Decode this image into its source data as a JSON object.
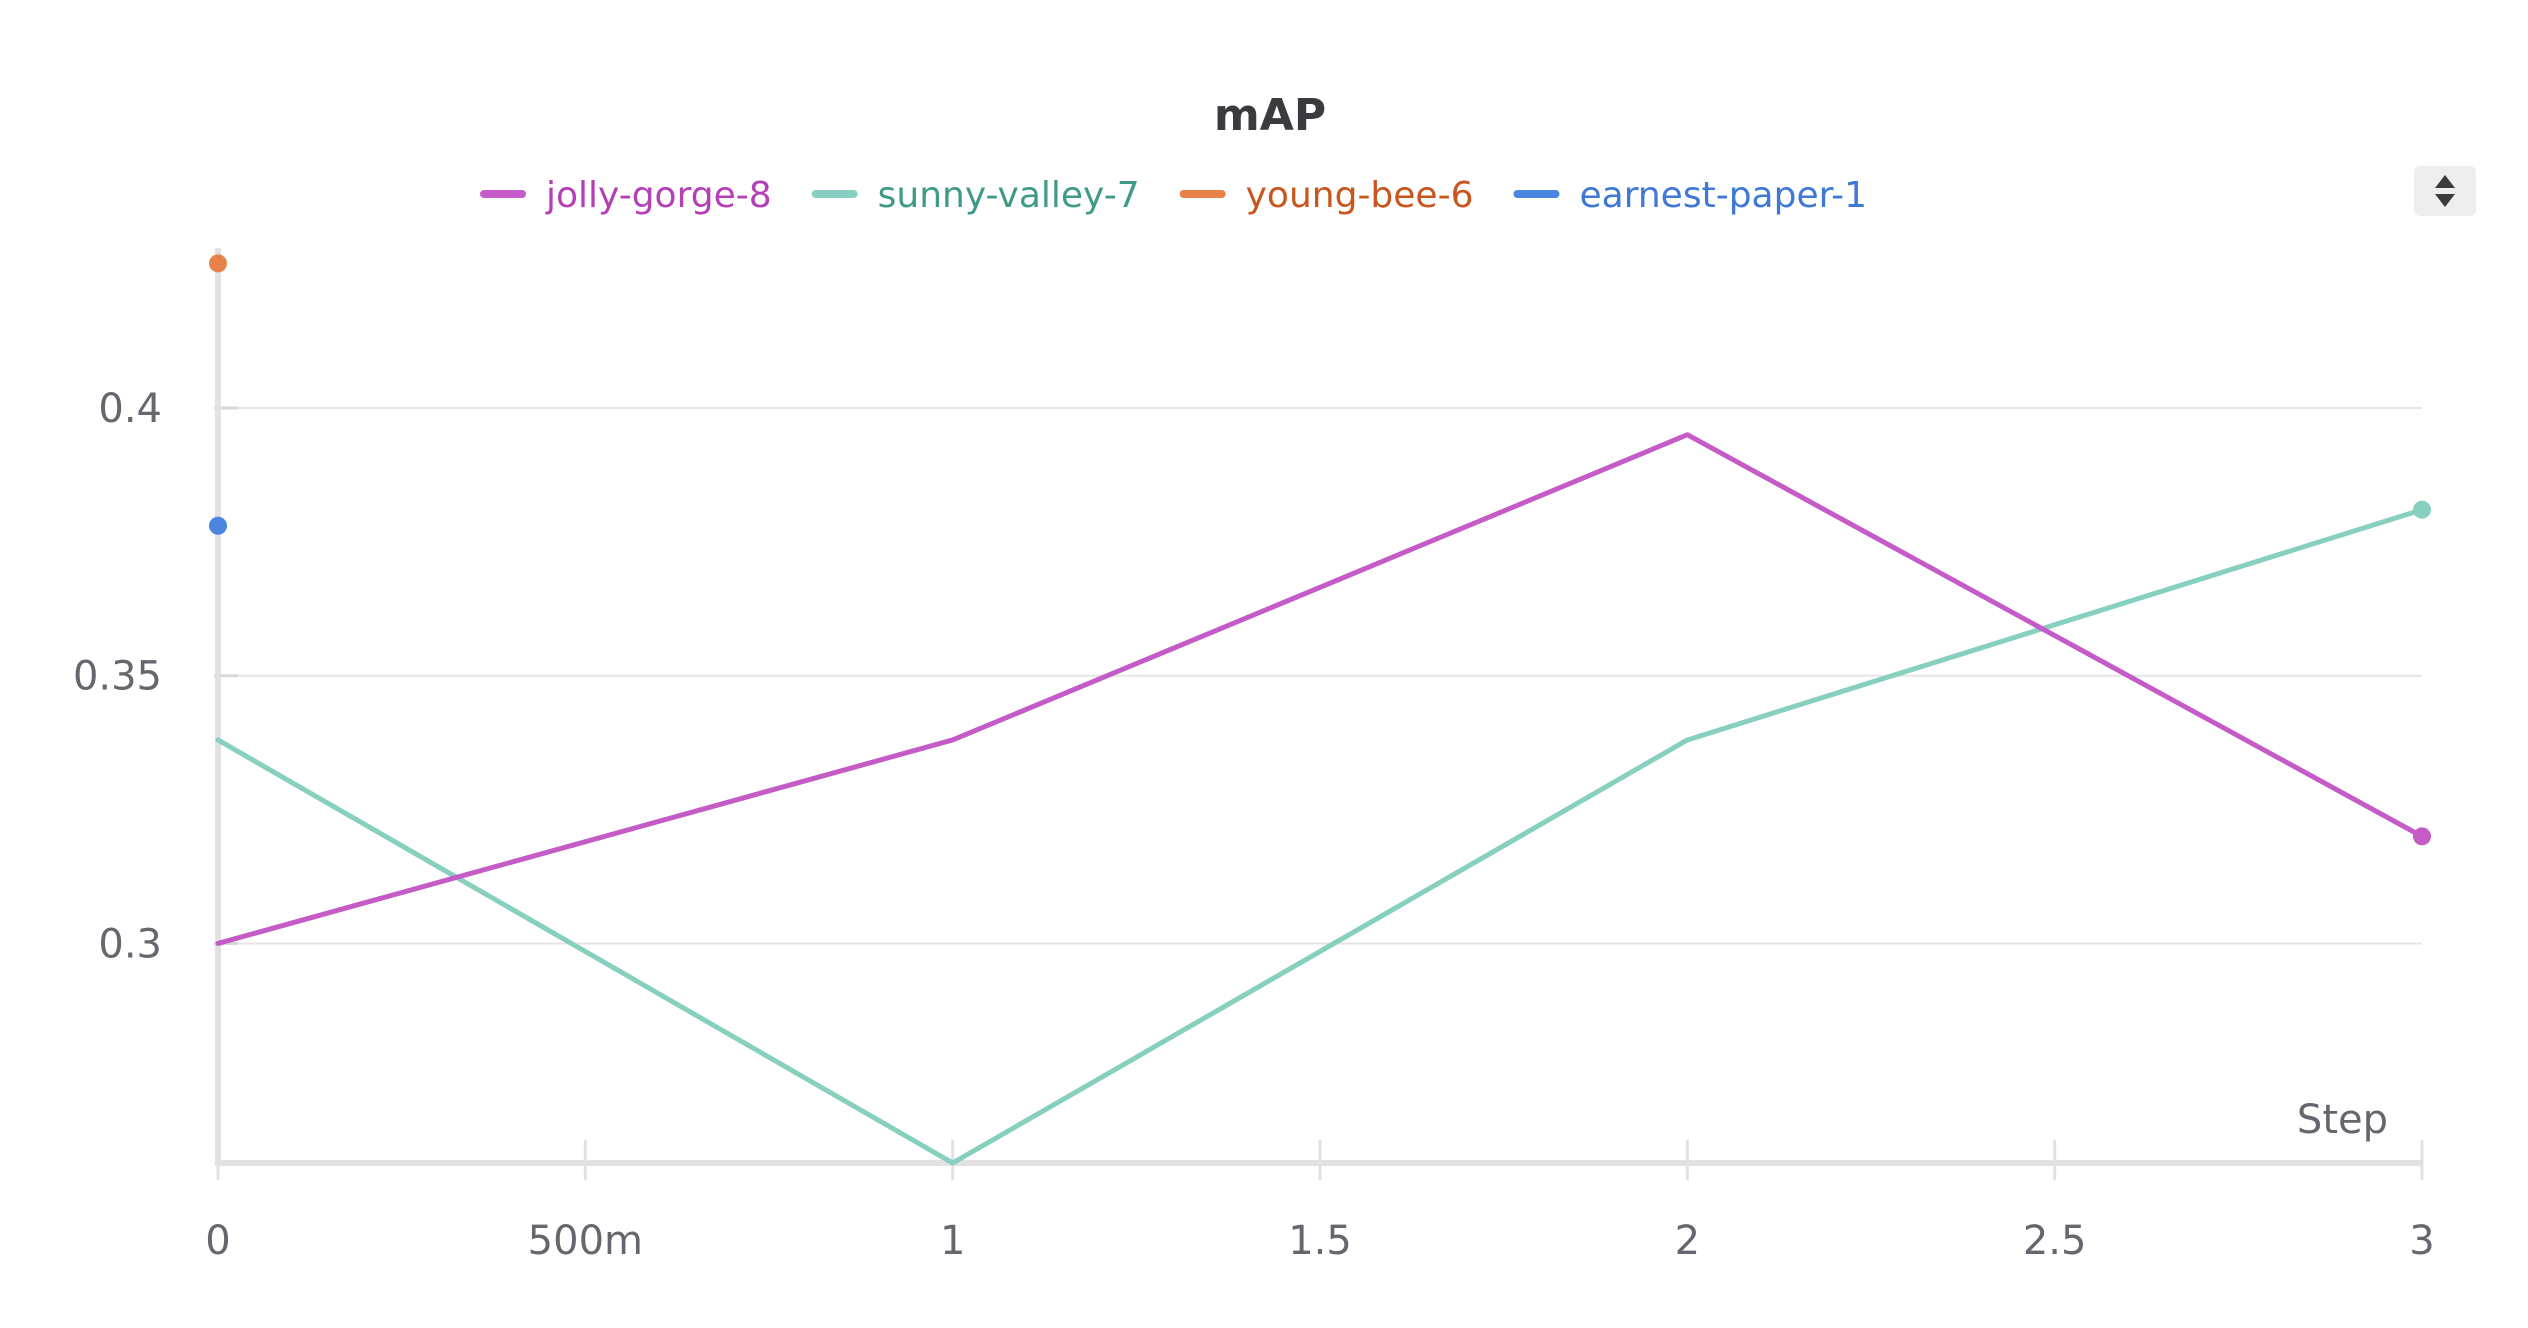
{
  "chart_data": {
    "type": "line",
    "title": "mAP",
    "xlabel": "Step",
    "ylabel": "",
    "xlim": [
      0,
      3
    ],
    "ylim": [
      0.259,
      0.428
    ],
    "x_ticks": [
      0,
      0.5,
      1,
      1.5,
      2,
      2.5,
      3
    ],
    "x_tick_labels": [
      "0",
      "500m",
      "1",
      "1.5",
      "2",
      "2.5",
      "3"
    ],
    "y_ticks": [
      0.3,
      0.35,
      0.4
    ],
    "y_tick_labels": [
      "0.3",
      "0.35",
      "0.4"
    ],
    "grid": "horizontal",
    "legend_position": "top",
    "series": [
      {
        "name": "jolly-gorge-8",
        "color": "#c45bc6",
        "label_color": "#b43fb6",
        "x": [
          0,
          1,
          2,
          3
        ],
        "y": [
          0.3,
          0.338,
          0.395,
          0.32
        ]
      },
      {
        "name": "sunny-valley-7",
        "color": "#87cfbe",
        "label_color": "#3f9b86",
        "x": [
          0,
          1,
          2,
          3
        ],
        "y": [
          0.338,
          0.259,
          0.338,
          0.381
        ]
      },
      {
        "name": "young-bee-6",
        "color": "#e8814a",
        "label_color": "#c8561e",
        "x": [
          0
        ],
        "y": [
          0.427
        ]
      },
      {
        "name": "earnest-paper-1",
        "color": "#4a85e0",
        "label_color": "#3f78d6",
        "x": [
          0
        ],
        "y": [
          0.378
        ]
      }
    ]
  },
  "legend_toggle": {
    "icon": "sort-arrows-icon"
  }
}
